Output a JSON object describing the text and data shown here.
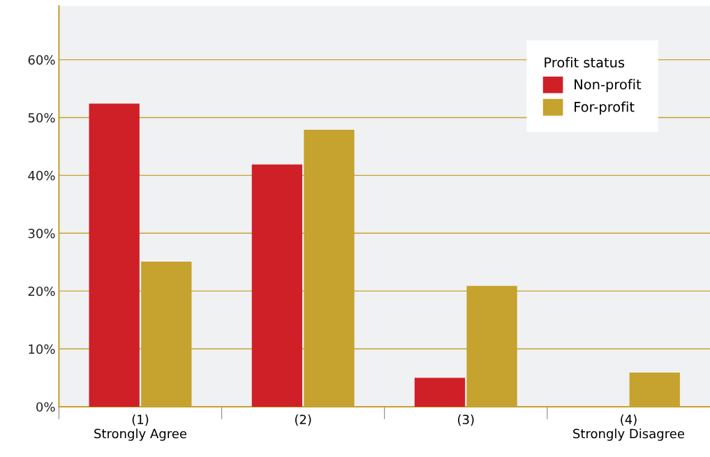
{
  "chart_data": {
    "type": "bar",
    "categories": [
      "(1)\nStrongly Agree",
      "(2)",
      "(3)",
      "(4)\nStrongly Disagree"
    ],
    "series": [
      {
        "name": "Non-profit",
        "color": "#cf2027",
        "values": [
          52.4,
          41.9,
          5.0,
          0
        ]
      },
      {
        "name": "For-profit",
        "color": "#c6a22e",
        "values": [
          25.1,
          47.9,
          20.9,
          5.9
        ]
      }
    ],
    "legend_title": "Profit status",
    "ylim": [
      0,
      69.3
    ],
    "yticks": [
      {
        "value": 0,
        "label": "0%"
      },
      {
        "value": 10,
        "label": "10%"
      },
      {
        "value": 20,
        "label": "20%"
      },
      {
        "value": 30,
        "label": "30%"
      },
      {
        "value": 40,
        "label": "40%"
      },
      {
        "value": 50,
        "label": "50%"
      },
      {
        "value": 60,
        "label": "60%"
      }
    ],
    "grid": "y",
    "legend": "top right"
  }
}
